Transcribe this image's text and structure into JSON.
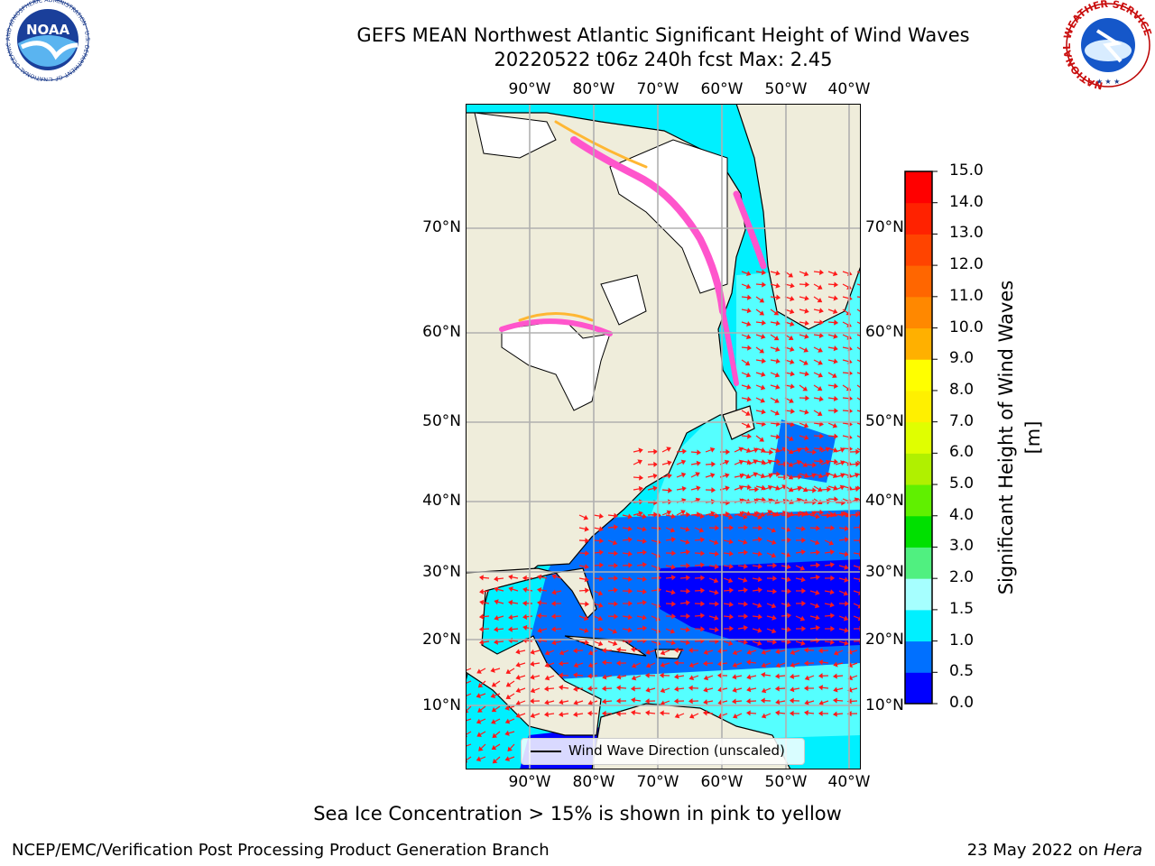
{
  "title": {
    "line1": "GEFS MEAN Northwest Atlantic Significant Height of Wind Waves",
    "line2": "20220522 t06z 240h fcst   Max: 2.45"
  },
  "map": {
    "lon_labels": [
      "90°W",
      "80°W",
      "70°W",
      "60°W",
      "50°W",
      "40°W"
    ],
    "lat_labels": [
      "70°N",
      "60°N",
      "50°N",
      "40°N",
      "30°N",
      "20°N",
      "10°N"
    ],
    "legend_label": "Wind Wave Direction (unscaled)",
    "colors": {
      "land": "#efeddb",
      "ice_free_white": "#ffffff",
      "ice": "#ff55cc",
      "ice_edge": "#ffb733",
      "arrow": "#ff1a1a",
      "grid": "#b0b0b0"
    }
  },
  "colorbar": {
    "label": "Significant Height of Wind Waves [m]",
    "tick_labels": [
      "15.0",
      "14.0",
      "13.0",
      "12.0",
      "11.0",
      "10.0",
      "9.0",
      "8.0",
      "7.0",
      "6.0",
      "5.0",
      "4.0",
      "3.0",
      "2.0",
      "1.5",
      "1.0",
      "0.5",
      "0.0"
    ],
    "colors": [
      "#0000ff",
      "#0070ff",
      "#00f0ff",
      "#55ffff",
      "#a6ffff",
      "#50f080",
      "#00e000",
      "#60f000",
      "#b0f000",
      "#e0ff00",
      "#fff000",
      "#ffff00",
      "#ffb000",
      "#ff8800",
      "#ff6600",
      "#ff4400",
      "#ff2200",
      "#ff0000"
    ]
  },
  "footer": {
    "note": "Sea Ice Concentration > 15% is shown in pink to yellow",
    "credit": "NCEP/EMC/Verification Post Processing Product Generation Branch",
    "date": "23 May 2022 on",
    "host": "Hera"
  },
  "logos": {
    "noaa": "NOAA",
    "noaa_ring": "NATIONAL OCEANIC AND ATMOSPHERIC ADMINISTRATION · U.S. DEPARTMENT OF COMMERCE",
    "nws_ring": "NATIONAL WEATHER SERVICE"
  }
}
